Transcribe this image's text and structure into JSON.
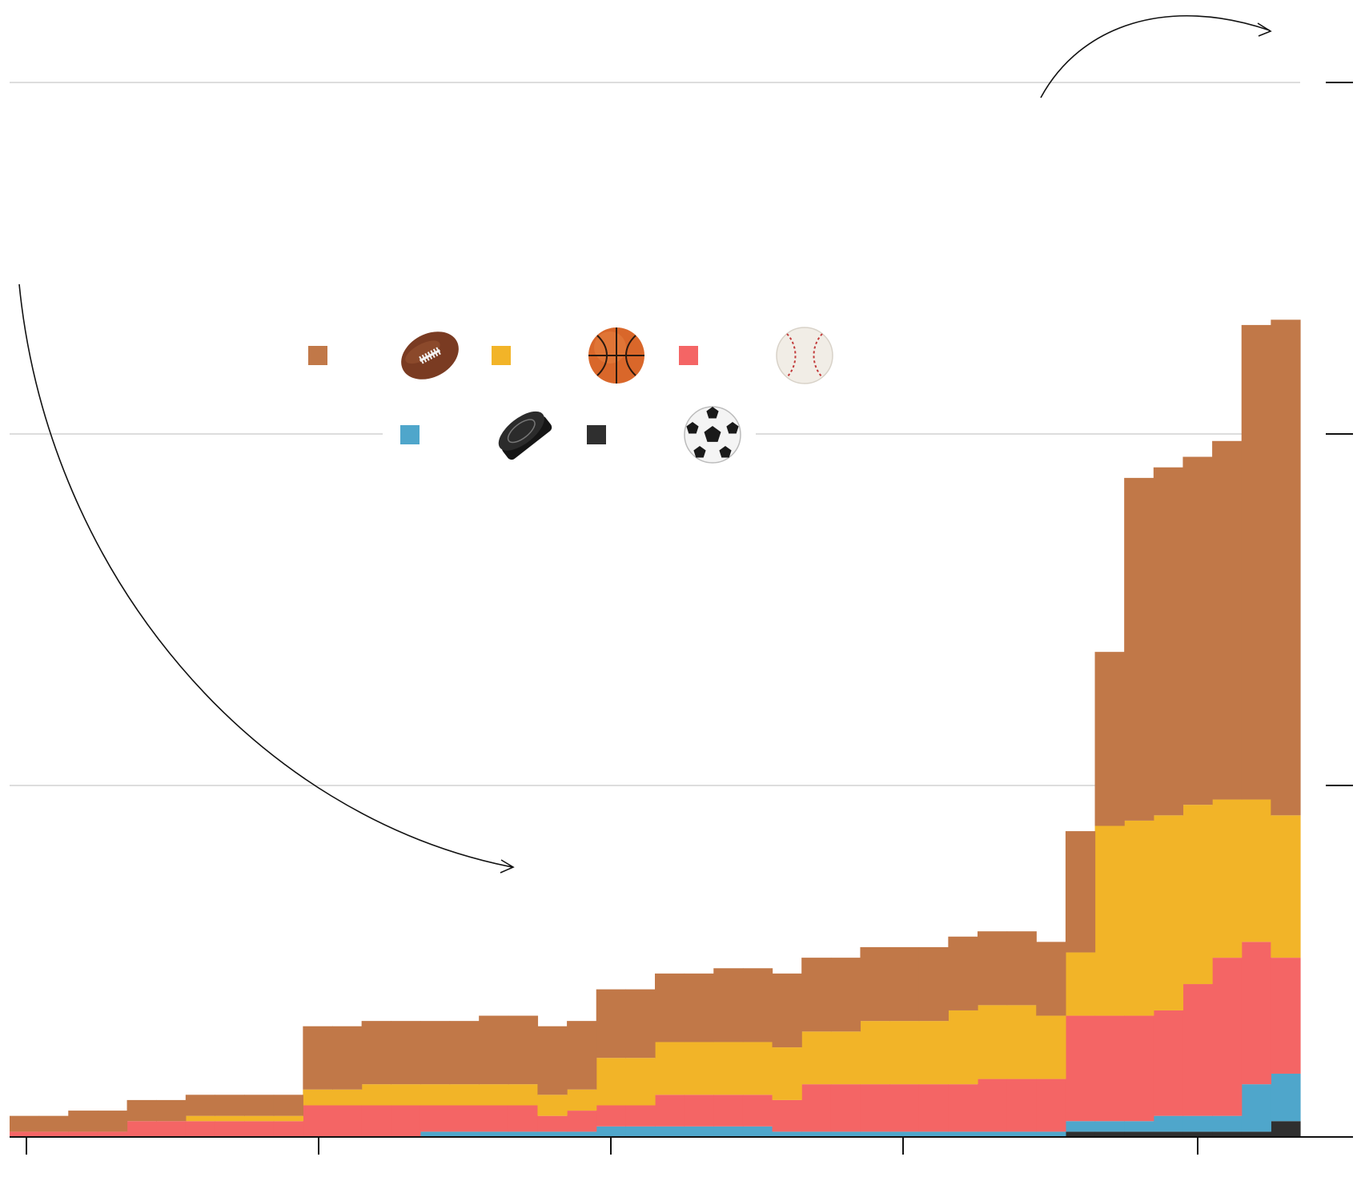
{
  "colors": {
    "football": "#C17848",
    "basketball": "#F2B428",
    "baseball": "#F46565",
    "hockey": "#4FA6CB",
    "soccer": "#2F2F2F",
    "gridline": "#DDDDDD",
    "axis": "#111111"
  },
  "legend": [
    {
      "sport": "football",
      "icon": "football-icon"
    },
    {
      "sport": "basketball",
      "icon": "basketball-icon"
    },
    {
      "sport": "baseball",
      "icon": "baseball-icon"
    },
    {
      "sport": "hockey",
      "icon": "hockey-puck-icon"
    },
    {
      "sport": "soccer",
      "icon": "soccer-ball-icon"
    }
  ],
  "chart_data": {
    "type": "area",
    "stacked": true,
    "step": true,
    "title": "",
    "xlabel": "",
    "ylabel": "",
    "ylim": [
      0,
      100
    ],
    "y_gridlines": [
      33.33,
      66.67,
      100
    ],
    "grid": true,
    "x_ticks_count": 5,
    "periods": 44,
    "series": [
      {
        "key": "soccer",
        "values": [
          0,
          0,
          0,
          0,
          0,
          0,
          0,
          0,
          0,
          0,
          0,
          0,
          0,
          0,
          0,
          0,
          0,
          0,
          0,
          0,
          0,
          0,
          0,
          0,
          0,
          0,
          0,
          0,
          0,
          0,
          0,
          0,
          0,
          0,
          0,
          0,
          0.5,
          0.5,
          0.5,
          0.5,
          0.5,
          0.5,
          0.5,
          1.5
        ]
      },
      {
        "key": "hockey",
        "values": [
          0,
          0,
          0,
          0,
          0,
          0,
          0,
          0,
          0,
          0,
          0,
          0,
          0,
          0,
          0.5,
          0.5,
          0.5,
          0.5,
          0.5,
          0.5,
          1,
          1,
          1,
          1,
          1,
          1,
          0.5,
          0.5,
          0.5,
          0.5,
          0.5,
          0.5,
          0.5,
          0.5,
          0.5,
          0.5,
          1,
          1,
          1,
          1.5,
          1.5,
          1.5,
          4.5,
          4.5
        ]
      },
      {
        "key": "baseball",
        "values": [
          0.5,
          0.5,
          0.5,
          0.5,
          1.5,
          1.5,
          1.5,
          1.5,
          1.5,
          1.5,
          3,
          3,
          3,
          3,
          2.5,
          2.5,
          2.5,
          2.5,
          1.5,
          2,
          2,
          2,
          3,
          3,
          3,
          3,
          3,
          4.5,
          4.5,
          4.5,
          4.5,
          4.5,
          4.5,
          5,
          5,
          5,
          10,
          10,
          10,
          10,
          12.5,
          15,
          13.5,
          11
        ]
      },
      {
        "key": "basketball",
        "values": [
          0,
          0,
          0,
          0,
          0,
          0,
          0.5,
          0.5,
          0.5,
          0.5,
          1.5,
          1.5,
          2,
          2,
          2,
          2,
          2,
          2,
          2,
          2,
          4.5,
          4.5,
          5,
          5,
          5,
          5,
          5,
          5,
          5,
          6,
          6,
          6,
          7,
          7,
          7,
          6,
          6,
          18,
          18.5,
          18.5,
          17,
          15,
          13.5,
          13.5
        ]
      },
      {
        "key": "football",
        "values": [
          1.5,
          1.5,
          2,
          2,
          2,
          2,
          2,
          2,
          2,
          2,
          6,
          6,
          6,
          6,
          6,
          6,
          6.5,
          6.5,
          6.5,
          6.5,
          6.5,
          6.5,
          6.5,
          6.5,
          7,
          7,
          7,
          7,
          7,
          7,
          7,
          7,
          7,
          7,
          7,
          7,
          11.5,
          16.5,
          32.5,
          33,
          33,
          34,
          45,
          47
        ]
      }
    ]
  }
}
